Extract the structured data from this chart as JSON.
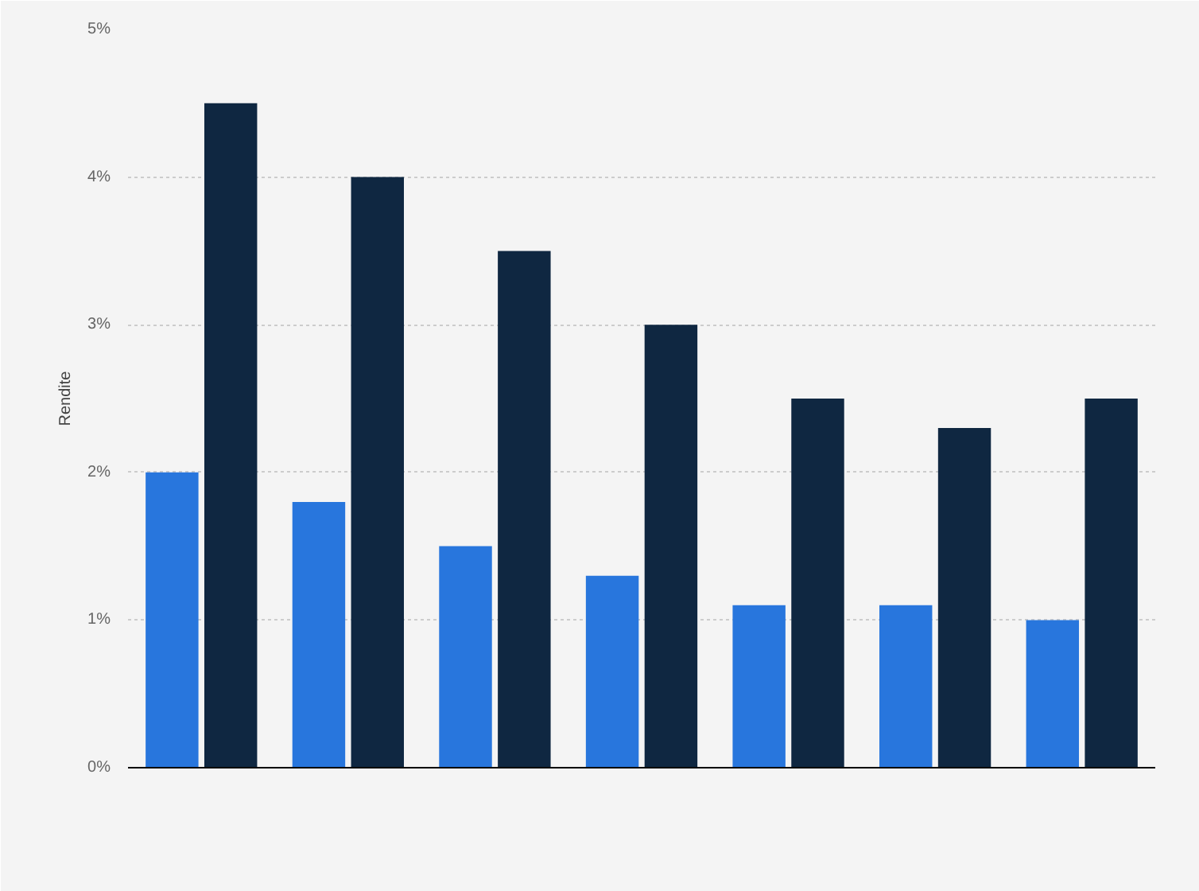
{
  "chart_data": {
    "type": "bar",
    "ylabel": "Rendite",
    "categories": [
      null,
      null,
      null,
      null,
      null,
      null,
      null
    ],
    "series": [
      {
        "color": "#2876dd",
        "values": [
          2.0,
          1.8,
          1.5,
          1.3,
          1.1,
          1.1,
          1.0
        ]
      },
      {
        "color": "#0f2741",
        "values": [
          4.5,
          4.0,
          3.5,
          3.0,
          2.5,
          2.3,
          2.5
        ]
      }
    ],
    "ylim": [
      0,
      5
    ],
    "yticks": [
      {
        "value": 0,
        "label": "0%"
      },
      {
        "value": 1,
        "label": "1%"
      },
      {
        "value": 2,
        "label": "2%"
      },
      {
        "value": 3,
        "label": "3%"
      },
      {
        "value": 4,
        "label": "4%"
      },
      {
        "value": 5,
        "label": "5%"
      }
    ],
    "grid": "y"
  }
}
